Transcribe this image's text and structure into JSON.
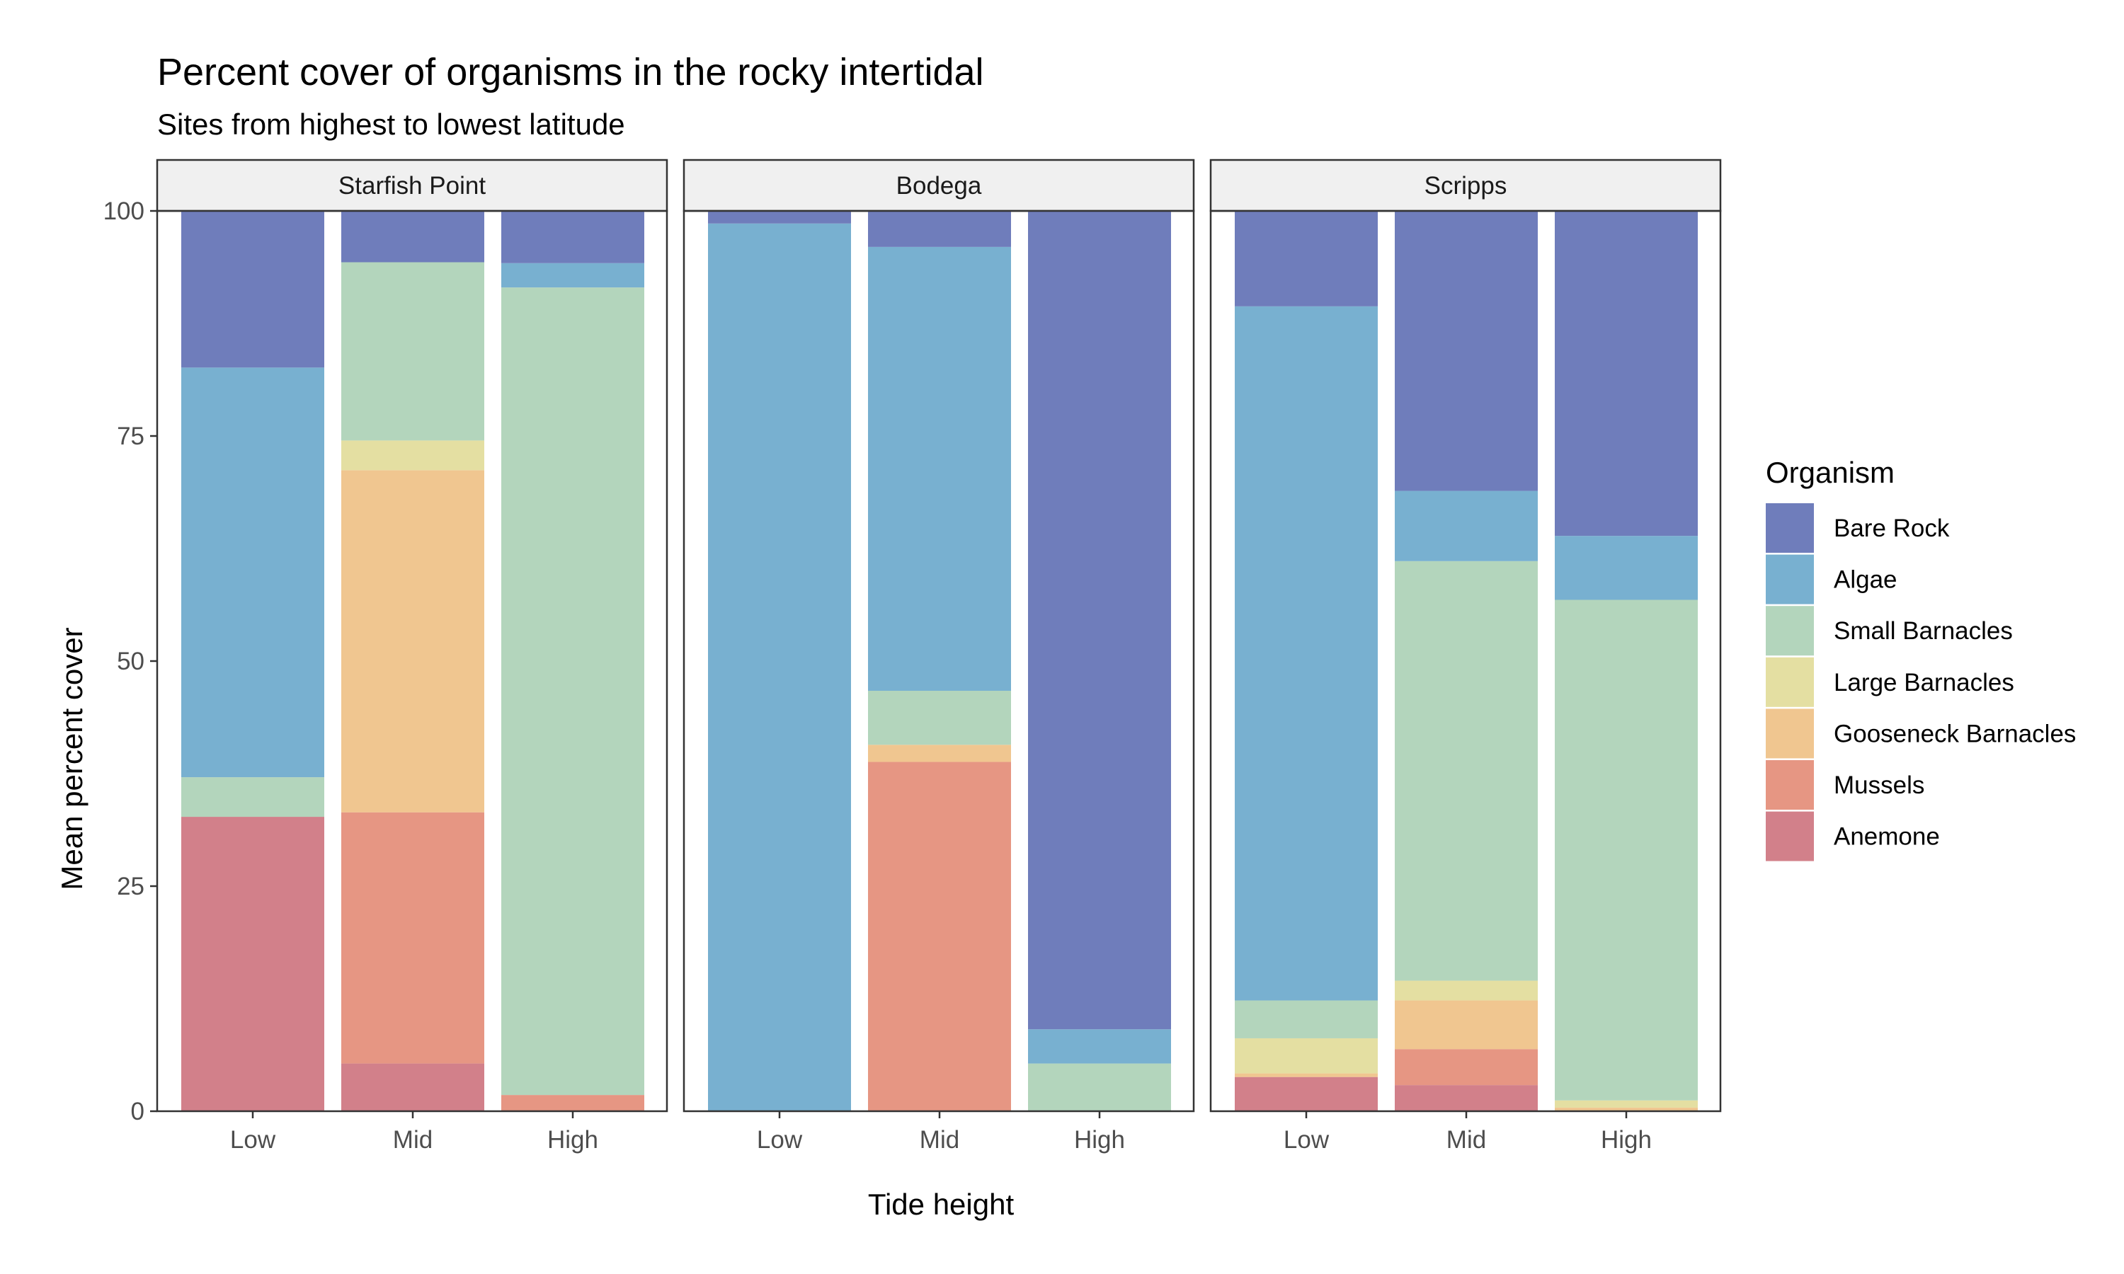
{
  "chart_data": {
    "type": "bar",
    "stacked": true,
    "title": "Percent cover of organisms in the rocky intertidal",
    "subtitle": "Sites from highest to lowest latitude",
    "xlabel": "Tide height",
    "ylabel": "Mean percent cover",
    "ylim": [
      0,
      100
    ],
    "yticks": [
      "0",
      "25",
      "50",
      "75",
      "100"
    ],
    "yticks_values": [
      0,
      25,
      50,
      75,
      100
    ],
    "categories": [
      "Low",
      "Mid",
      "High"
    ],
    "legend": {
      "title": "Organism",
      "position": "right"
    },
    "series": [
      {
        "name": "Bare Rock",
        "color": "#6F7DBB"
      },
      {
        "name": "Algae",
        "color": "#78B0D0"
      },
      {
        "name": "Small Barnacles",
        "color": "#B3D5BC"
      },
      {
        "name": "Large Barnacles",
        "color": "#E4DFA2"
      },
      {
        "name": "Gooseneck Barnacles",
        "color": "#F0C690"
      },
      {
        "name": "Mussels",
        "color": "#E69683"
      },
      {
        "name": "Anemone",
        "color": "#D2808A"
      }
    ],
    "stack_order_bottom_to_top": [
      "Anemone",
      "Mussels",
      "Gooseneck Barnacles",
      "Large Barnacles",
      "Small Barnacles",
      "Algae",
      "Bare Rock"
    ],
    "panels": [
      {
        "site": "Starfish Point",
        "values": {
          "Low": {
            "Anemone": 32.7,
            "Mussels": 0,
            "Gooseneck Barnacles": 0,
            "Large Barnacles": 0,
            "Small Barnacles": 4.4,
            "Algae": 45.5,
            "Bare Rock": 17.4
          },
          "Mid": {
            "Anemone": 5.3,
            "Mussels": 27.9,
            "Gooseneck Barnacles": 38.0,
            "Large Barnacles": 3.3,
            "Small Barnacles": 19.8,
            "Algae": 0,
            "Bare Rock": 5.7
          },
          "High": {
            "Anemone": 0,
            "Mussels": 1.8,
            "Gooseneck Barnacles": 0,
            "Large Barnacles": 0,
            "Small Barnacles": 89.7,
            "Algae": 2.7,
            "Bare Rock": 5.8
          }
        }
      },
      {
        "site": "Bodega",
        "values": {
          "Low": {
            "Anemone": 0,
            "Mussels": 0,
            "Gooseneck Barnacles": 0,
            "Large Barnacles": 0,
            "Small Barnacles": 0,
            "Algae": 98.6,
            "Bare Rock": 1.4
          },
          "Mid": {
            "Anemone": 0,
            "Mussels": 38.8,
            "Gooseneck Barnacles": 1.9,
            "Large Barnacles": 0,
            "Small Barnacles": 6.0,
            "Algae": 49.3,
            "Bare Rock": 4.0
          },
          "High": {
            "Anemone": 0,
            "Mussels": 0,
            "Gooseneck Barnacles": 0,
            "Large Barnacles": 0,
            "Small Barnacles": 5.3,
            "Algae": 3.8,
            "Bare Rock": 90.9
          }
        }
      },
      {
        "site": "Scripps",
        "values": {
          "Low": {
            "Anemone": 3.8,
            "Mussels": 0,
            "Gooseneck Barnacles": 0.4,
            "Large Barnacles": 3.9,
            "Small Barnacles": 4.2,
            "Algae": 77.1,
            "Bare Rock": 10.6
          },
          "Mid": {
            "Anemone": 2.9,
            "Mussels": 4.0,
            "Gooseneck Barnacles": 5.4,
            "Large Barnacles": 2.2,
            "Small Barnacles": 46.6,
            "Algae": 7.8,
            "Bare Rock": 31.1
          },
          "High": {
            "Anemone": 0,
            "Mussels": 0,
            "Gooseneck Barnacles": 0.4,
            "Large Barnacles": 0.8,
            "Small Barnacles": 55.6,
            "Algae": 7.1,
            "Bare Rock": 36.1
          }
        }
      }
    ]
  }
}
